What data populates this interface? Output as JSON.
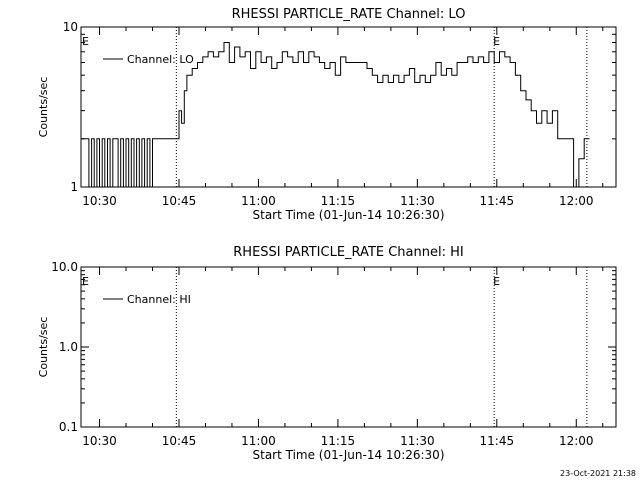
{
  "footer": {
    "timestamp": "23-Oct-2021 21:38"
  },
  "chart_data": [
    {
      "type": "line",
      "title": "RHESSI PARTICLE_RATE Channel: LO",
      "xlabel": "Start Time (01-Jun-14 10:26:30)",
      "ylabel": "Counts/sec",
      "yscale": "log",
      "ylim": [
        1,
        10
      ],
      "xlim": [
        "10:26:30",
        "12:07:30"
      ],
      "x_ticks": [
        "10:30",
        "10:45",
        "11:00",
        "11:15",
        "11:30",
        "11:45",
        "12:00"
      ],
      "y_ticks": [
        "1",
        "10"
      ],
      "legend": {
        "placement": "top-left",
        "entries": [
          "Channel: LO"
        ]
      },
      "markers": [
        {
          "label": "E",
          "time": "10:26:30",
          "style": "none"
        },
        {
          "label": "",
          "time": "10:44:30",
          "style": "dotted"
        },
        {
          "label": "E",
          "time": "11:44:30",
          "style": "dotted"
        },
        {
          "label": "",
          "time": "12:02:00",
          "style": "dotted"
        }
      ],
      "series": [
        {
          "name": "Channel: LO",
          "x_minutes": [
            0,
            1,
            1.5,
            2,
            2.5,
            3,
            3.5,
            4,
            4.5,
            5,
            5.5,
            6,
            6.5,
            7,
            7.5,
            8,
            8.5,
            9,
            9.5,
            10,
            10.5,
            11,
            11.5,
            12,
            12.5,
            13,
            13.5,
            14,
            16,
            18,
            18.5,
            19,
            19.5,
            20,
            21,
            22,
            23,
            24,
            25,
            26,
            27,
            28,
            29,
            30,
            31,
            32,
            33,
            34,
            35,
            36,
            37,
            38,
            39,
            40,
            41,
            42,
            43,
            44,
            45,
            46,
            47,
            48,
            49,
            50,
            51,
            52,
            53,
            54,
            55,
            56,
            57,
            58,
            59,
            60,
            61,
            62,
            63,
            64,
            65,
            66,
            67,
            68,
            69,
            70,
            71,
            72,
            73,
            74,
            75,
            76,
            77,
            78,
            79,
            80,
            81,
            82,
            83,
            84,
            85,
            86,
            87,
            88,
            89,
            90,
            91,
            92,
            93,
            94,
            95,
            96
          ],
          "values": [
            2,
            2,
            1,
            2,
            1,
            2,
            1,
            2,
            1,
            2,
            1,
            2,
            2,
            1,
            2,
            1,
            2,
            1,
            2,
            1,
            2,
            1,
            2,
            1,
            2,
            1,
            2,
            2,
            2,
            2,
            3,
            2.5,
            4,
            5,
            5.5,
            6,
            6.5,
            7,
            6.5,
            7,
            8,
            6,
            7.5,
            6.5,
            7,
            5.5,
            7,
            6,
            6.5,
            5.5,
            6,
            7,
            6.5,
            6,
            7,
            6,
            7,
            6.5,
            6,
            5.5,
            6,
            5,
            6.5,
            6,
            6,
            6,
            6,
            5.5,
            5,
            4.5,
            5,
            4.5,
            5,
            4.5,
            5,
            5.5,
            4.5,
            5,
            4.5,
            5,
            6,
            5,
            5.5,
            5,
            6,
            6,
            6.5,
            6,
            6.5,
            6,
            7,
            6,
            7,
            6.5,
            6,
            5,
            4,
            3.5,
            3,
            2.5,
            3,
            2.5,
            3,
            2,
            2,
            2,
            1,
            1.5,
            2,
            2
          ]
        }
      ]
    },
    {
      "type": "line",
      "title": "RHESSI PARTICLE_RATE Channel: HI",
      "xlabel": "Start Time (01-Jun-14 10:26:30)",
      "ylabel": "Counts/sec",
      "yscale": "log",
      "ylim": [
        0.1,
        10
      ],
      "xlim": [
        "10:26:30",
        "12:07:30"
      ],
      "x_ticks": [
        "10:30",
        "10:45",
        "11:00",
        "11:15",
        "11:30",
        "11:45",
        "12:00"
      ],
      "y_ticks": [
        "0.1",
        "1.0",
        "10.0"
      ],
      "legend": {
        "placement": "top-left",
        "entries": [
          "Channel: HI"
        ]
      },
      "markers": [
        {
          "label": "E",
          "time": "10:26:30",
          "style": "none"
        },
        {
          "label": "",
          "time": "10:44:30",
          "style": "dotted"
        },
        {
          "label": "E",
          "time": "11:44:30",
          "style": "dotted"
        },
        {
          "label": "",
          "time": "12:02:00",
          "style": "dotted"
        }
      ],
      "series": [
        {
          "name": "Channel: HI",
          "x_minutes": [],
          "values": []
        }
      ]
    }
  ]
}
